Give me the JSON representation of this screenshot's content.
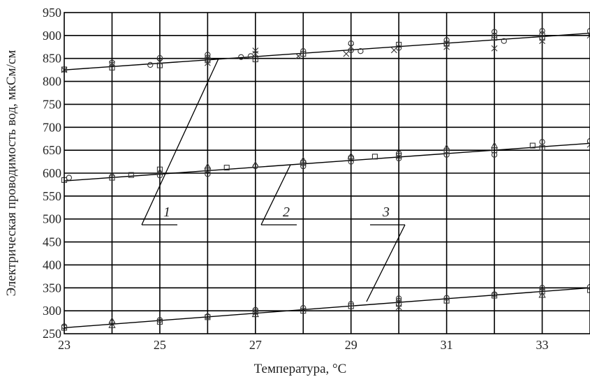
{
  "chart_data": {
    "type": "scatter",
    "title": "",
    "xlabel": "Температура, °С",
    "ylabel": "Электрическая проводимость вод, мкСм/см",
    "xlim": [
      23,
      34
    ],
    "ylim": [
      250,
      950
    ],
    "x_ticks": [
      "23",
      "25",
      "27",
      "29",
      "31",
      "33"
    ],
    "x_tick_values": [
      23,
      25,
      27,
      29,
      31,
      33
    ],
    "y_ticks": [
      "250",
      "300",
      "350",
      "400",
      "450",
      "500",
      "550",
      "600",
      "650",
      "700",
      "750",
      "800",
      "850",
      "900",
      "950"
    ],
    "y_tick_values": [
      250,
      300,
      350,
      400,
      450,
      500,
      550,
      600,
      650,
      700,
      750,
      800,
      850,
      900,
      950
    ],
    "grid": true,
    "series": [
      {
        "name": "1",
        "fit": [
          [
            23,
            825
          ],
          [
            34,
            905
          ]
        ],
        "points": [
          [
            23,
            825,
            "x"
          ],
          [
            23,
            826,
            "s"
          ],
          [
            24,
            830,
            "s"
          ],
          [
            24,
            838,
            "x"
          ],
          [
            24,
            841,
            "o"
          ],
          [
            24.8,
            836,
            "o"
          ],
          [
            25,
            835,
            "s"
          ],
          [
            25,
            842,
            "x"
          ],
          [
            25,
            851,
            "o"
          ],
          [
            26,
            840,
            "x"
          ],
          [
            26,
            846,
            "s"
          ],
          [
            26,
            852,
            "o"
          ],
          [
            26,
            858,
            "o"
          ],
          [
            26.7,
            853,
            "o"
          ],
          [
            26.9,
            855,
            "o"
          ],
          [
            27,
            848,
            "s"
          ],
          [
            27,
            860,
            "x"
          ],
          [
            27,
            867,
            "x"
          ],
          [
            27.9,
            855,
            "x"
          ],
          [
            28,
            860,
            "s"
          ],
          [
            28,
            866,
            "o"
          ],
          [
            28.9,
            860,
            "x"
          ],
          [
            29,
            868,
            "o"
          ],
          [
            29,
            875,
            "x"
          ],
          [
            29,
            883,
            "o"
          ],
          [
            29.2,
            866,
            "o"
          ],
          [
            29.9,
            868,
            "x"
          ],
          [
            30,
            873,
            "o"
          ],
          [
            30,
            880,
            "s"
          ],
          [
            31,
            875,
            "x"
          ],
          [
            31,
            882,
            "s"
          ],
          [
            31,
            890,
            "o"
          ],
          [
            32,
            872,
            "x"
          ],
          [
            32,
            895,
            "s"
          ],
          [
            32,
            900,
            "o"
          ],
          [
            32,
            908,
            "o"
          ],
          [
            32.2,
            888,
            "o"
          ],
          [
            33,
            888,
            "x"
          ],
          [
            33,
            895,
            "s"
          ],
          [
            33,
            903,
            "o"
          ],
          [
            33,
            910,
            "o"
          ],
          [
            34,
            900,
            "x"
          ],
          [
            34,
            910,
            "o"
          ]
        ]
      },
      {
        "name": "2",
        "fit": [
          [
            23,
            583
          ],
          [
            34,
            665
          ]
        ],
        "points": [
          [
            23,
            585,
            "s"
          ],
          [
            23.1,
            590,
            "o"
          ],
          [
            24,
            590,
            "s"
          ],
          [
            24,
            596,
            "t"
          ],
          [
            24.4,
            596,
            "s"
          ],
          [
            25,
            595,
            "o"
          ],
          [
            25,
            602,
            "t"
          ],
          [
            25,
            608,
            "s"
          ],
          [
            26,
            598,
            "o"
          ],
          [
            26,
            607,
            "s"
          ],
          [
            26,
            614,
            "t"
          ],
          [
            26.4,
            612,
            "s"
          ],
          [
            27,
            615,
            "o"
          ],
          [
            27,
            618,
            "t"
          ],
          [
            28,
            615,
            "o"
          ],
          [
            28,
            622,
            "s"
          ],
          [
            28,
            628,
            "t"
          ],
          [
            29,
            625,
            "o"
          ],
          [
            29,
            632,
            "s"
          ],
          [
            29,
            637,
            "t"
          ],
          [
            29.5,
            636,
            "s"
          ],
          [
            30,
            632,
            "o"
          ],
          [
            30,
            638,
            "s"
          ],
          [
            30,
            643,
            "o"
          ],
          [
            31,
            640,
            "o"
          ],
          [
            31,
            648,
            "s"
          ],
          [
            31,
            655,
            "t"
          ],
          [
            32,
            640,
            "o"
          ],
          [
            32,
            650,
            "s"
          ],
          [
            32,
            660,
            "t"
          ],
          [
            32.8,
            660,
            "s"
          ],
          [
            33,
            655,
            "s"
          ],
          [
            33,
            668,
            "o"
          ],
          [
            34,
            662,
            "x"
          ],
          [
            34,
            670,
            "o"
          ]
        ]
      },
      {
        "name": "3",
        "fit": [
          [
            23,
            263
          ],
          [
            34,
            350
          ]
        ],
        "points": [
          [
            23,
            263,
            "s"
          ],
          [
            23,
            266,
            "o"
          ],
          [
            24,
            268,
            "t"
          ],
          [
            24,
            274,
            "o"
          ],
          [
            24,
            278,
            "t"
          ],
          [
            25,
            276,
            "s"
          ],
          [
            25,
            280,
            "o"
          ],
          [
            26,
            286,
            "s"
          ],
          [
            26,
            288,
            "o"
          ],
          [
            27,
            292,
            "t"
          ],
          [
            27,
            298,
            "s"
          ],
          [
            27,
            302,
            "o"
          ],
          [
            28,
            300,
            "s"
          ],
          [
            28,
            306,
            "o"
          ],
          [
            29,
            310,
            "s"
          ],
          [
            29,
            315,
            "o"
          ],
          [
            30,
            308,
            "x"
          ],
          [
            30,
            315,
            "s"
          ],
          [
            30,
            322,
            "o"
          ],
          [
            30,
            327,
            "o"
          ],
          [
            31,
            322,
            "s"
          ],
          [
            31,
            328,
            "o"
          ],
          [
            32,
            333,
            "s"
          ],
          [
            32,
            336,
            "o"
          ],
          [
            33,
            334,
            "t"
          ],
          [
            33,
            342,
            "s"
          ],
          [
            33,
            350,
            "o"
          ],
          [
            34,
            345,
            "s"
          ],
          [
            34,
            352,
            "o"
          ]
        ]
      }
    ]
  }
}
